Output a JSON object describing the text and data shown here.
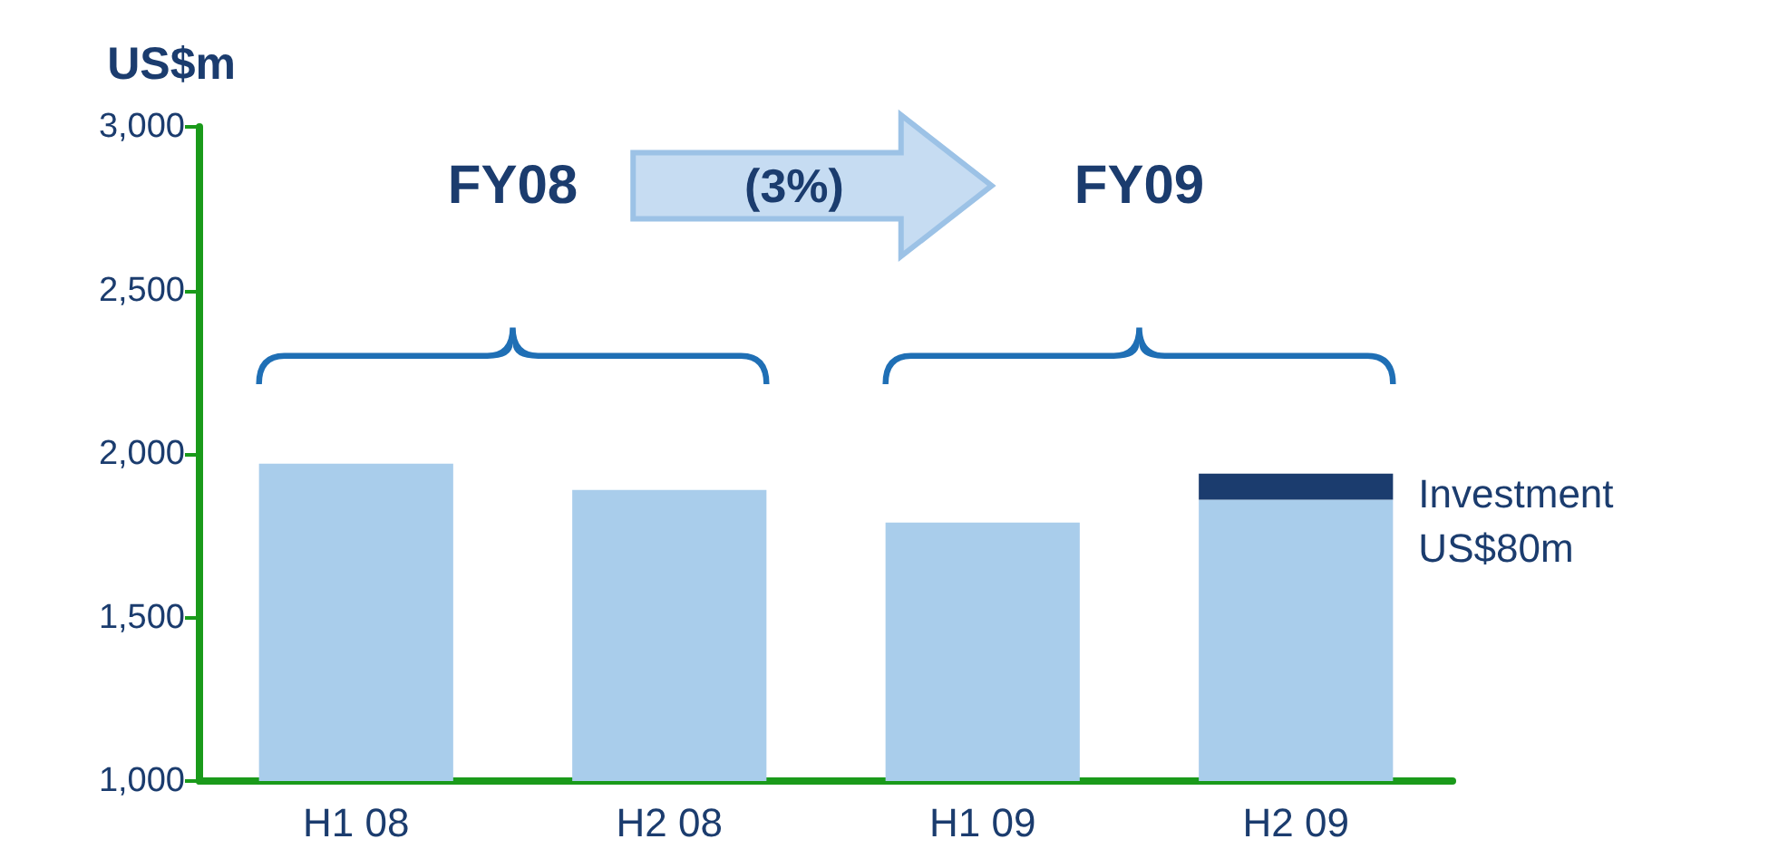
{
  "chart_data": {
    "type": "bar",
    "ylabel": "US$m",
    "categories": [
      "H1 08",
      "H2 08",
      "H1 09",
      "H2 09"
    ],
    "series": [
      {
        "color": "#a9cdeb",
        "values": [
          1970,
          1890,
          1790,
          1860
        ]
      },
      {
        "color": "#1b3c6e",
        "values": [
          null,
          null,
          null,
          80
        ],
        "base": [
          null,
          null,
          null,
          1860
        ]
      }
    ],
    "ylim": [
      1000,
      3000
    ],
    "yticks": [
      {
        "value": 1000,
        "label": "1,000"
      },
      {
        "value": 1500,
        "label": "1,500"
      },
      {
        "value": 2000,
        "label": "2,000"
      },
      {
        "value": 2500,
        "label": "2,500"
      },
      {
        "value": 3000,
        "label": "3,000"
      }
    ],
    "grid": false,
    "annotations": [
      "FY08",
      "(3%)",
      "FY09",
      "Investment US$80m"
    ]
  }
}
